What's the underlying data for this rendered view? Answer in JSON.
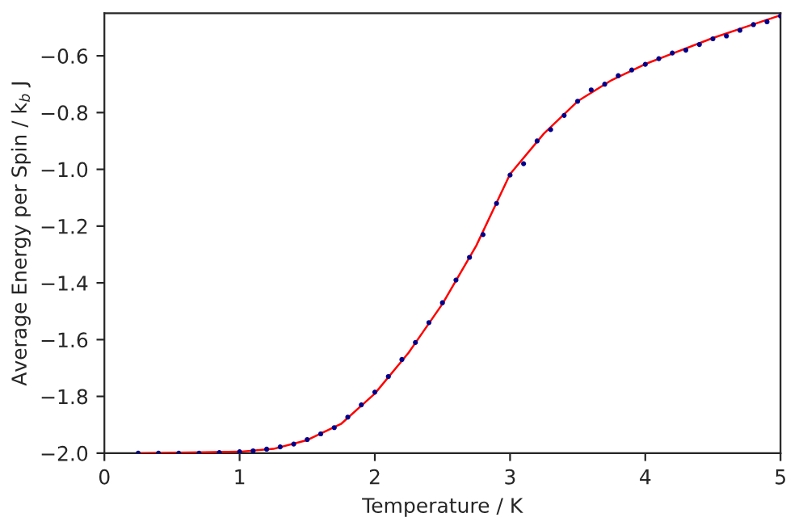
{
  "chart_data": {
    "type": "scatter",
    "xlabel": "Temperature / K",
    "ylabel": "Average Energy per Spin / k$_{b}$ J",
    "xlim": [
      0,
      5
    ],
    "ylim": [
      -2.0,
      -0.45
    ],
    "xticks": [
      0,
      1,
      2,
      3,
      4,
      5
    ],
    "yticks": [
      {
        "value": -2.0,
        "label": "−2.0"
      },
      -1.8,
      -1.6,
      -1.4,
      -1.2,
      {
        "value": -1.0,
        "label": "−1.0"
      },
      -0.8,
      -0.6
    ],
    "grid": false,
    "legend": false,
    "series": [
      {
        "color": "#00008b",
        "marker": "circle",
        "x": [
          0.25,
          0.4,
          0.55,
          0.7,
          0.85,
          1.0,
          1.1,
          1.2,
          1.3,
          1.4,
          1.5,
          1.6,
          1.7,
          1.8,
          1.9,
          2.0,
          2.1,
          2.2,
          2.3,
          2.4,
          2.5,
          2.6,
          2.7,
          2.8,
          2.9,
          3.0,
          3.1,
          3.2,
          3.3,
          3.4,
          3.5,
          3.6,
          3.7,
          3.8,
          3.9,
          4.0,
          4.1,
          4.2,
          4.3,
          4.4,
          4.5,
          4.6,
          4.7,
          4.8,
          4.9,
          5.0
        ],
        "values": [
          -2.0,
          -2.0,
          -2.0,
          -2.0,
          -1.998,
          -1.995,
          -1.992,
          -1.986,
          -1.978,
          -1.968,
          -1.952,
          -1.932,
          -1.91,
          -1.873,
          -1.83,
          -1.785,
          -1.73,
          -1.67,
          -1.61,
          -1.54,
          -1.47,
          -1.39,
          -1.31,
          -1.23,
          -1.12,
          -1.02,
          -0.98,
          -0.9,
          -0.86,
          -0.81,
          -0.76,
          -0.72,
          -0.7,
          -0.67,
          -0.65,
          -0.63,
          -0.61,
          -0.59,
          -0.58,
          -0.56,
          -0.54,
          -0.53,
          -0.51,
          -0.49,
          -0.48,
          -0.46
        ]
      },
      {
        "type": "line",
        "color": "#ff0000",
        "line_style": "solid",
        "marker": "none",
        "x": [
          0.25,
          1.0,
          1.25,
          1.5,
          1.75,
          2.0,
          2.25,
          2.5,
          2.75,
          3.0,
          3.25,
          3.5,
          3.75,
          4.0,
          4.25,
          4.5,
          4.75,
          5.0
        ],
        "values": [
          -2.0,
          -1.995,
          -1.985,
          -1.954,
          -1.897,
          -1.79,
          -1.646,
          -1.474,
          -1.269,
          -1.017,
          -0.874,
          -0.76,
          -0.686,
          -0.629,
          -0.583,
          -0.537,
          -0.497,
          -0.457
        ]
      }
    ]
  }
}
